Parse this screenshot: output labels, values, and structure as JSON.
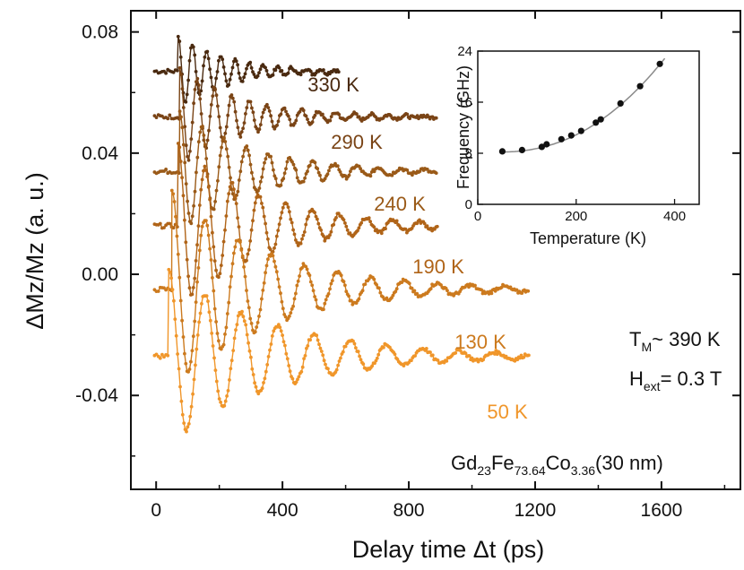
{
  "chart_data": {
    "type": "line",
    "xlabel": "Delay time Δt (ps)",
    "ylabel": "ΔMz/Mz (a. u.)",
    "xlim": [
      -80,
      1850
    ],
    "ylim": [
      -0.071,
      0.087
    ],
    "xticks": [
      "0",
      "400",
      "800",
      "1200",
      "1600"
    ],
    "xtick_values": [
      0,
      400,
      800,
      1200,
      1600
    ],
    "yticks": [
      "0.08",
      "0.04",
      "0.00",
      "-0.04"
    ],
    "ytick_values": [
      0.08,
      0.04,
      0.0,
      -0.04
    ],
    "series": [
      {
        "name": "330 K",
        "color": "#4a2a10",
        "offset": 0.067,
        "t_start": 70,
        "t_end": 580,
        "amp": 0.012,
        "period_ps": 45,
        "decay_ps": 160
      },
      {
        "name": "290 K",
        "color": "#7a4416",
        "offset": 0.052,
        "t_start": 75,
        "t_end": 890,
        "amp": 0.016,
        "period_ps": 55,
        "decay_ps": 200
      },
      {
        "name": "240 K",
        "color": "#9a5a18",
        "offset": 0.034,
        "t_start": 75,
        "t_end": 890,
        "amp": 0.02,
        "period_ps": 70,
        "decay_ps": 230
      },
      {
        "name": "190 K",
        "color": "#b06418",
        "offset": 0.016,
        "t_start": 70,
        "t_end": 890,
        "amp": 0.027,
        "period_ps": 85,
        "decay_ps": 260
      },
      {
        "name": "130 K",
        "color": "#cc7a1e",
        "offset": -0.005,
        "t_start": 50,
        "t_end": 1180,
        "amp": 0.033,
        "period_ps": 105,
        "decay_ps": 300
      },
      {
        "name": "50 K",
        "color": "#f0962a",
        "offset": -0.027,
        "t_start": 40,
        "t_end": 1180,
        "amp": 0.029,
        "period_ps": 115,
        "decay_ps": 330
      }
    ],
    "annotations": {
      "tm_main": "T",
      "tm_sub": "M",
      "tm_rest": "~ 390 K",
      "h_main": "H",
      "h_sub": "ext",
      "h_rest": "= 0.3 T",
      "sample": {
        "p1": "Gd",
        "s1": "23",
        "p2": "Fe",
        "s2": "73.64",
        "p3": "Co",
        "s3": "3.36",
        "p4": "(30 nm)"
      }
    },
    "inset": {
      "type": "scatter",
      "xlabel": "Temperature (K)",
      "ylabel": "Frequency (GHz)",
      "xlim": [
        0,
        450
      ],
      "ylim": [
        0,
        24
      ],
      "xticks": [
        "0",
        "200",
        "400"
      ],
      "xtick_values": [
        0,
        200,
        400
      ],
      "yticks": [
        "0",
        "8",
        "16",
        "24"
      ],
      "ytick_values": [
        0,
        8,
        16,
        24
      ],
      "x": [
        50,
        90,
        130,
        140,
        170,
        190,
        210,
        240,
        250,
        290,
        330,
        370
      ],
      "y": [
        8.3,
        8.5,
        9.0,
        9.4,
        10.2,
        10.8,
        11.5,
        12.8,
        13.3,
        15.8,
        18.5,
        22.0
      ],
      "fit": true
    }
  }
}
